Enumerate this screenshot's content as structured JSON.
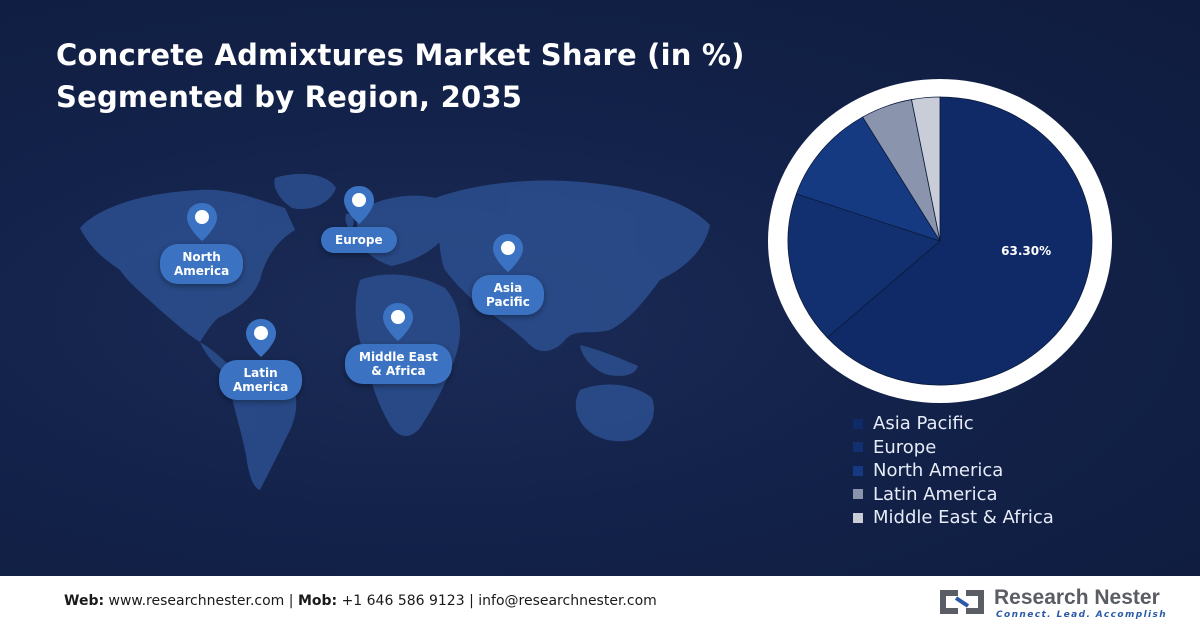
{
  "title": {
    "line1": "Concrete Admixtures Market Share (in %)",
    "line2": "Segmented by Region, 2035"
  },
  "map_labels": [
    {
      "name": "North America",
      "text": "North\nAmerica"
    },
    {
      "name": "Europe",
      "text": "Europe"
    },
    {
      "name": "Asia Pacific",
      "text": "Asia\nPacific"
    },
    {
      "name": "Middle East & Africa",
      "text": "Middle East\n& Africa"
    },
    {
      "name": "Latin America",
      "text": "Latin\nAmerica"
    }
  ],
  "chart_data": {
    "type": "pie",
    "title": "",
    "legend_position": "bottom",
    "slices": [
      {
        "label": "Asia Pacific",
        "value": 63.3,
        "data_label": "63.30%",
        "color": "#0f2a66"
      },
      {
        "label": "Europe",
        "value": 17.0,
        "data_label": "",
        "color": "#123070"
      },
      {
        "label": "North America",
        "value": 11.2,
        "data_label": "",
        "color": "#163a82"
      },
      {
        "label": "Latin America",
        "value": 5.5,
        "data_label": "",
        "color": "#8a94ad"
      },
      {
        "label": "Middle East & Africa",
        "value": 3.0,
        "data_label": "",
        "color": "#c9cdd8"
      }
    ]
  },
  "footer": {
    "web_label": "Web:",
    "web": "www.researchnester.com",
    "mob_label": "Mob:",
    "mob": "+1 646 586 9123",
    "email": "info@researchnester.com",
    "separator": "|"
  },
  "logo": {
    "name": "Research Nester",
    "tagline": "Connect. Lead. Accomplish"
  },
  "colors": {
    "background": "#13224a",
    "pill": "#3b73c2",
    "map_land": "#2c4f8f"
  }
}
